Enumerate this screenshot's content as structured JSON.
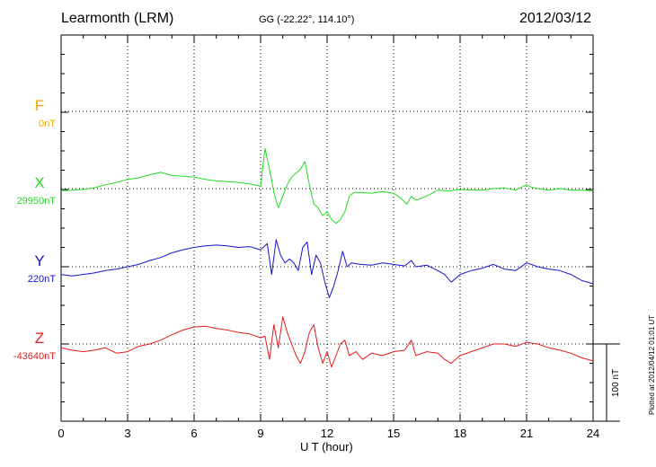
{
  "header": {
    "station": "Learmonth (LRM)",
    "coords": "GG (-22.22°, 114.10°)",
    "date": "2012/03/12"
  },
  "components": [
    {
      "name": "F",
      "baseline": "0nT",
      "color": "#f5a500"
    },
    {
      "name": "X",
      "baseline": "29950nT",
      "color": "#22dd22"
    },
    {
      "name": "Y",
      "baseline": "220nT",
      "color": "#1515cc"
    },
    {
      "name": "Z",
      "baseline": "-43640nT",
      "color": "#e51a1a"
    }
  ],
  "scale_label": "100 nT",
  "plotted_note": "Plotted at 2012/04/12 01:01 UT",
  "chart_data": {
    "type": "line",
    "xlabel": "U T (hour)",
    "xlim": [
      0,
      24
    ],
    "xticks": [
      "0",
      "3",
      "6",
      "9",
      "12",
      "15",
      "18",
      "21",
      "24"
    ],
    "ylabel": "",
    "y_unit": "nT",
    "scale_bar_nT": 100,
    "grid": true,
    "series": [
      {
        "name": "F",
        "color": "#f5a500",
        "x": [],
        "y": []
      },
      {
        "name": "X",
        "color": "#22dd22",
        "x": [
          0,
          0.5,
          1,
          1.5,
          2,
          2.5,
          3,
          3.5,
          4,
          4.5,
          5,
          5.5,
          6,
          6.5,
          7,
          7.5,
          8,
          8.5,
          9,
          9.2,
          9.4,
          9.6,
          9.8,
          10,
          10.2,
          10.4,
          10.6,
          10.8,
          11,
          11.2,
          11.4,
          11.6,
          11.8,
          12,
          12.2,
          12.4,
          12.6,
          12.8,
          13,
          13.2,
          13.5,
          14,
          14.5,
          15,
          15.3,
          15.6,
          15.8,
          16,
          16.3,
          16.6,
          17,
          17.5,
          18,
          18.5,
          19,
          19.5,
          20,
          20.5,
          21,
          21.2,
          21.5,
          22,
          22.5,
          23,
          23.5,
          24
        ],
        "y": [
          -3,
          -2,
          -1,
          1,
          5,
          8,
          12,
          14,
          18,
          21,
          17,
          16,
          15,
          12,
          10,
          9,
          8,
          6,
          3,
          52,
          25,
          -5,
          -25,
          -10,
          5,
          15,
          20,
          25,
          35,
          5,
          -20,
          -25,
          -35,
          -30,
          -40,
          -45,
          -40,
          -30,
          -10,
          -5,
          -5,
          -6,
          -4,
          -6,
          -12,
          -20,
          -10,
          -15,
          -12,
          -8,
          -2,
          -3,
          -1,
          -2,
          -2,
          0,
          1,
          -2,
          5,
          2,
          0,
          -2,
          0,
          -2,
          -2,
          -3
        ]
      },
      {
        "name": "Y",
        "color": "#1515cc",
        "x": [
          0,
          0.5,
          1,
          1.5,
          2,
          2.5,
          3,
          3.5,
          4,
          4.5,
          5,
          5.5,
          6,
          6.5,
          7,
          7.5,
          8,
          8.5,
          9,
          9.3,
          9.5,
          9.7,
          9.9,
          10.1,
          10.3,
          10.5,
          10.7,
          10.9,
          11.1,
          11.3,
          11.5,
          11.7,
          11.9,
          12.1,
          12.3,
          12.5,
          12.7,
          12.9,
          13.1,
          13.5,
          14,
          14.5,
          15,
          15.5,
          15.8,
          16,
          16.5,
          17,
          17.3,
          17.6,
          18,
          18.5,
          19,
          19.5,
          20,
          20.5,
          21,
          21.5,
          22,
          22.5,
          23,
          23.5,
          24
        ],
        "y": [
          -10,
          -12,
          -10,
          -8,
          -5,
          -3,
          0,
          3,
          8,
          12,
          18,
          22,
          25,
          27,
          28,
          27,
          25,
          26,
          22,
          30,
          -10,
          35,
          15,
          5,
          10,
          5,
          -5,
          25,
          32,
          -10,
          15,
          5,
          -20,
          -40,
          -25,
          -5,
          20,
          0,
          5,
          3,
          2,
          5,
          3,
          1,
          8,
          0,
          2,
          -5,
          -10,
          -20,
          -10,
          -5,
          -2,
          3,
          -3,
          -5,
          5,
          0,
          -3,
          -5,
          -10,
          -18,
          -22
        ]
      },
      {
        "name": "Z",
        "color": "#e51a1a",
        "x": [
          0,
          0.5,
          1,
          1.5,
          2,
          2.5,
          3,
          3.5,
          4,
          4.5,
          5,
          5.5,
          6,
          6.5,
          7,
          7.5,
          8,
          8.5,
          9,
          9.2,
          9.4,
          9.6,
          9.8,
          10,
          10.2,
          10.4,
          10.6,
          10.8,
          11,
          11.2,
          11.4,
          11.6,
          11.8,
          12,
          12.2,
          12.4,
          12.6,
          12.8,
          13,
          13.3,
          13.6,
          14,
          14.5,
          15,
          15.5,
          15.8,
          16,
          16.5,
          17,
          17.3,
          17.6,
          18,
          18.5,
          19,
          19.5,
          20,
          20.5,
          21,
          21.5,
          22,
          22.5,
          23,
          23.5,
          24
        ],
        "y": [
          -5,
          -8,
          -10,
          -8,
          -5,
          -12,
          -10,
          -3,
          0,
          5,
          12,
          18,
          22,
          23,
          20,
          18,
          15,
          13,
          8,
          10,
          -20,
          25,
          -5,
          35,
          15,
          0,
          -15,
          -25,
          -10,
          15,
          25,
          -5,
          -25,
          -10,
          -30,
          -15,
          0,
          5,
          -15,
          -10,
          -20,
          -12,
          -15,
          -10,
          -8,
          5,
          -15,
          -10,
          -12,
          -20,
          -25,
          -15,
          -10,
          -5,
          0,
          0,
          -3,
          2,
          0,
          -5,
          -8,
          -12,
          -18,
          -22
        ]
      }
    ]
  }
}
